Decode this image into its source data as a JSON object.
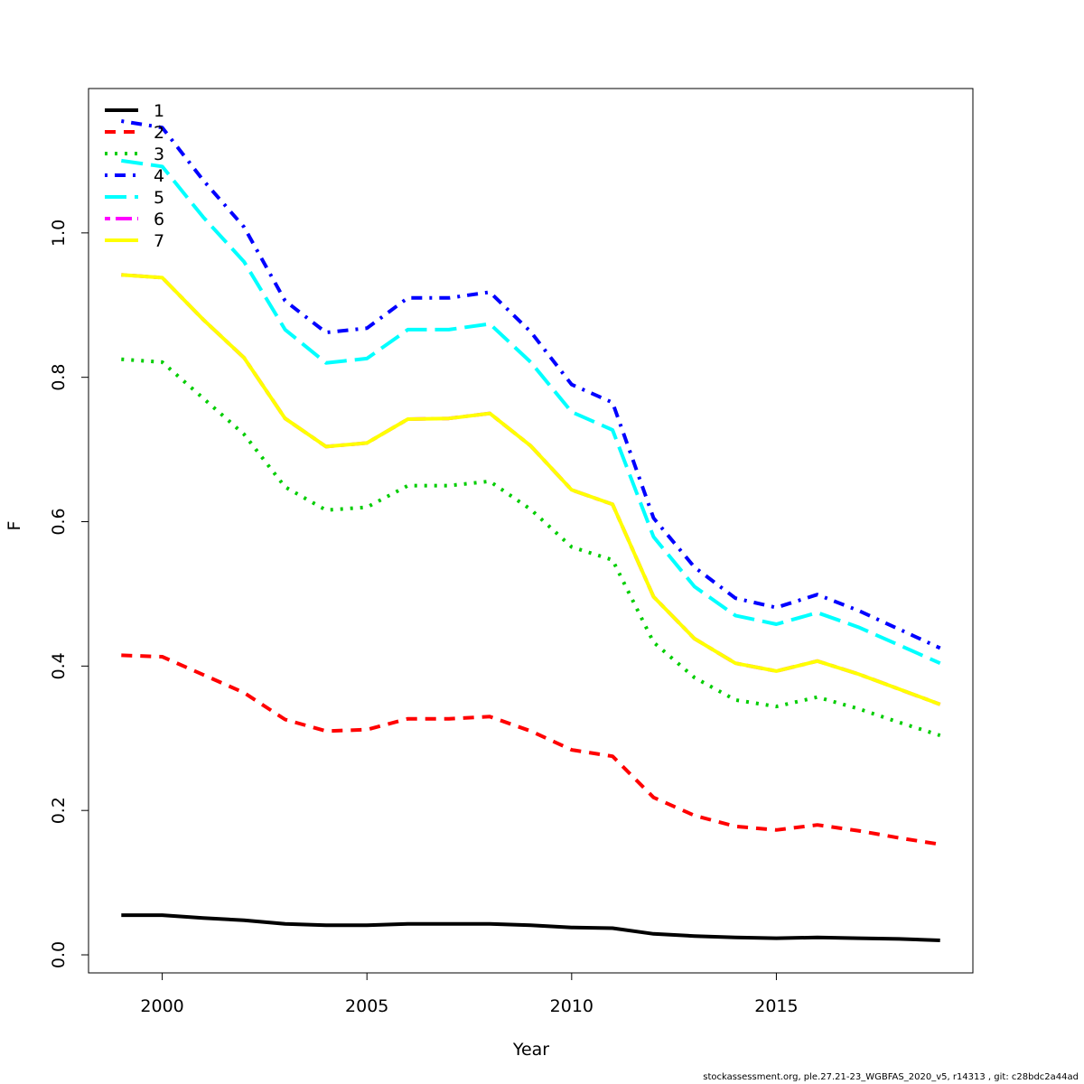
{
  "chart_data": {
    "type": "line",
    "xlabel": "Year",
    "ylabel": "F",
    "xlim": [
      1998.2,
      2019.8
    ],
    "ylim": [
      -0.025,
      1.2
    ],
    "x_ticks": [
      2000,
      2005,
      2010,
      2015
    ],
    "y_ticks": [
      0.0,
      0.2,
      0.4,
      0.6,
      0.8,
      1.0
    ],
    "x_tick_labels": [
      "2000",
      "2005",
      "2010",
      "2015"
    ],
    "y_tick_labels": [
      "0.0",
      "0.2",
      "0.4",
      "0.6",
      "0.8",
      "1.0"
    ],
    "legend_position": "top-left",
    "x": [
      1999,
      2000,
      2001,
      2002,
      2003,
      2004,
      2005,
      2006,
      2007,
      2008,
      2009,
      2010,
      2011,
      2012,
      2013,
      2014,
      2015,
      2016,
      2017,
      2018,
      2019
    ],
    "series": [
      {
        "name": "1",
        "color": "#000000",
        "dash": "solid",
        "values": [
          0.055,
          0.055,
          0.051,
          0.048,
          0.043,
          0.041,
          0.041,
          0.043,
          0.043,
          0.043,
          0.041,
          0.038,
          0.037,
          0.029,
          0.026,
          0.024,
          0.023,
          0.024,
          0.023,
          0.022,
          0.02
        ]
      },
      {
        "name": "2",
        "color": "#ff0000",
        "dash": "dashed",
        "values": [
          0.415,
          0.413,
          0.388,
          0.363,
          0.326,
          0.31,
          0.312,
          0.327,
          0.327,
          0.33,
          0.31,
          0.284,
          0.275,
          0.218,
          0.193,
          0.178,
          0.173,
          0.18,
          0.172,
          0.162,
          0.153
        ]
      },
      {
        "name": "3",
        "color": "#00cd00",
        "dash": "dotted",
        "values": [
          0.825,
          0.821,
          0.771,
          0.721,
          0.648,
          0.616,
          0.62,
          0.65,
          0.65,
          0.656,
          0.617,
          0.565,
          0.547,
          0.433,
          0.384,
          0.353,
          0.344,
          0.357,
          0.341,
          0.322,
          0.304
        ]
      },
      {
        "name": "4",
        "color": "#0000ff",
        "dash": "dotdash",
        "values": [
          1.155,
          1.146,
          1.073,
          1.008,
          0.906,
          0.862,
          0.868,
          0.91,
          0.91,
          0.918,
          0.863,
          0.79,
          0.765,
          0.605,
          0.537,
          0.494,
          0.481,
          0.499,
          0.477,
          0.451,
          0.425
        ]
      },
      {
        "name": "5",
        "color": "#00ffff",
        "dash": "longdash",
        "values": [
          1.1,
          1.092,
          1.022,
          0.96,
          0.866,
          0.82,
          0.826,
          0.866,
          0.866,
          0.874,
          0.821,
          0.752,
          0.727,
          0.579,
          0.51,
          0.47,
          0.458,
          0.474,
          0.454,
          0.429,
          0.404
        ]
      },
      {
        "name": "6",
        "color": "#ff00ff",
        "dash": "twodash",
        "values": [
          0.942,
          0.938,
          0.88,
          0.827,
          0.743,
          0.704,
          0.709,
          0.742,
          0.743,
          0.75,
          0.705,
          0.644,
          0.624,
          0.496,
          0.438,
          0.404,
          0.393,
          0.407,
          0.389,
          0.368,
          0.347
        ]
      },
      {
        "name": "7",
        "color": "#ffff00",
        "dash": "solid",
        "values": [
          0.942,
          0.938,
          0.88,
          0.827,
          0.743,
          0.704,
          0.709,
          0.742,
          0.743,
          0.75,
          0.705,
          0.644,
          0.624,
          0.496,
          0.438,
          0.404,
          0.393,
          0.407,
          0.389,
          0.368,
          0.347
        ]
      }
    ]
  },
  "footer_text": "stockassessment.org, ple.27.21-23_WGBFAS_2020_v5, r14313 , git: c28bdc2a44ad"
}
